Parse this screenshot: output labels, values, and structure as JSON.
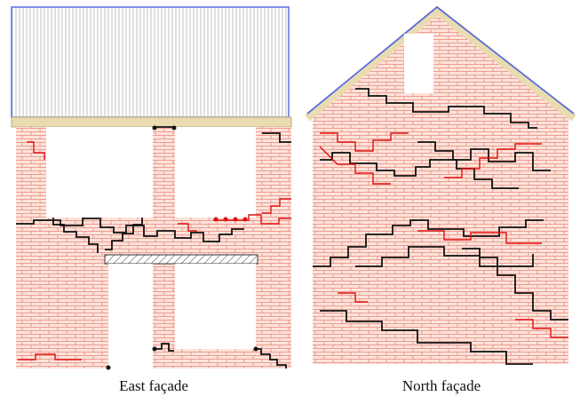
{
  "panels": [
    {
      "caption": "East façade"
    },
    {
      "caption": "North façade"
    }
  ]
}
